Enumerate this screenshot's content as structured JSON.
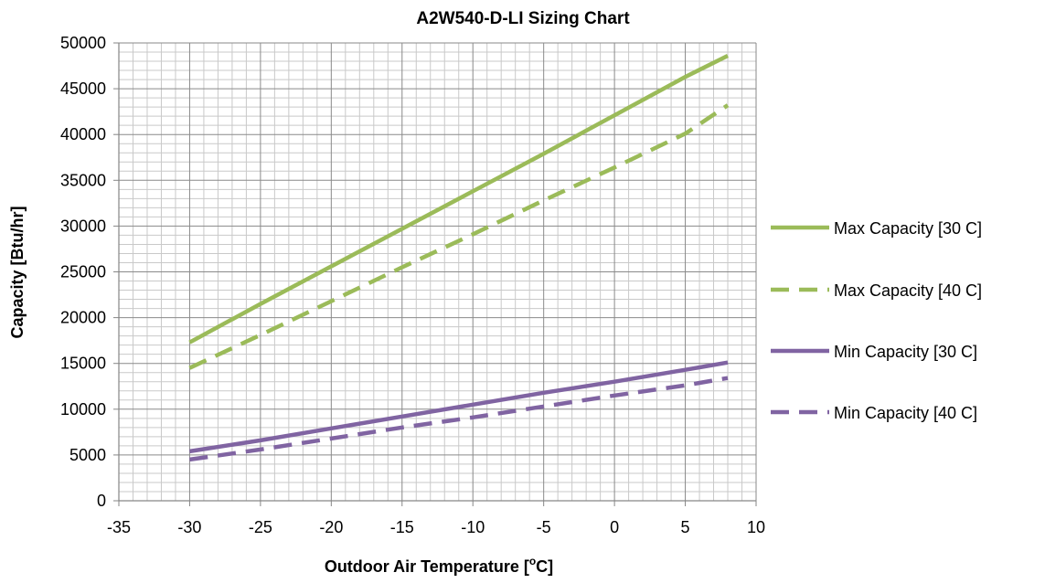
{
  "chart_data": {
    "type": "line",
    "title": "A2W540-D-LI Sizing Chart",
    "xlabel_main": "Outdoor Air Temperature [",
    "xlabel_sup": "o",
    "xlabel_end": "C]",
    "ylabel": "Capacity [Btu/hr]",
    "xlim": [
      -35,
      10
    ],
    "ylim": [
      0,
      50000
    ],
    "x_ticks": [
      "-35",
      "-30",
      "-25",
      "-20",
      "-15",
      "-10",
      "-5",
      "0",
      "5",
      "10"
    ],
    "y_ticks": [
      "0",
      "5000",
      "10000",
      "15000",
      "20000",
      "25000",
      "30000",
      "35000",
      "40000",
      "45000",
      "50000"
    ],
    "grid": true,
    "legend_position": "right",
    "series": [
      {
        "name": "Max Capacity [30 C]",
        "color": "#9bbb59",
        "dash": "solid",
        "x": [
          -30,
          -25,
          -20,
          -15,
          -10,
          -5,
          0,
          5,
          8
        ],
        "y": [
          17300,
          21500,
          25600,
          29700,
          33800,
          37900,
          42100,
          46300,
          48600
        ]
      },
      {
        "name": "Max Capacity [40 C]",
        "color": "#9bbb59",
        "dash": "dashed",
        "x": [
          -30,
          -25,
          -20,
          -15,
          -10,
          -5,
          0,
          5,
          8
        ],
        "y": [
          14500,
          18100,
          21800,
          25500,
          29100,
          32800,
          36400,
          40100,
          43200
        ]
      },
      {
        "name": "Min Capacity [30 C]",
        "color": "#8064a2",
        "dash": "solid",
        "x": [
          -30,
          -25,
          -20,
          -15,
          -10,
          -5,
          0,
          5,
          8
        ],
        "y": [
          5400,
          6600,
          7900,
          9200,
          10500,
          11800,
          13000,
          14300,
          15100
        ]
      },
      {
        "name": "Min Capacity [40 C]",
        "color": "#8064a2",
        "dash": "dashed",
        "x": [
          -30,
          -25,
          -20,
          -15,
          -10,
          -5,
          0,
          5,
          8
        ],
        "y": [
          4500,
          5600,
          6800,
          8000,
          9100,
          10300,
          11500,
          12600,
          13400
        ]
      }
    ]
  }
}
